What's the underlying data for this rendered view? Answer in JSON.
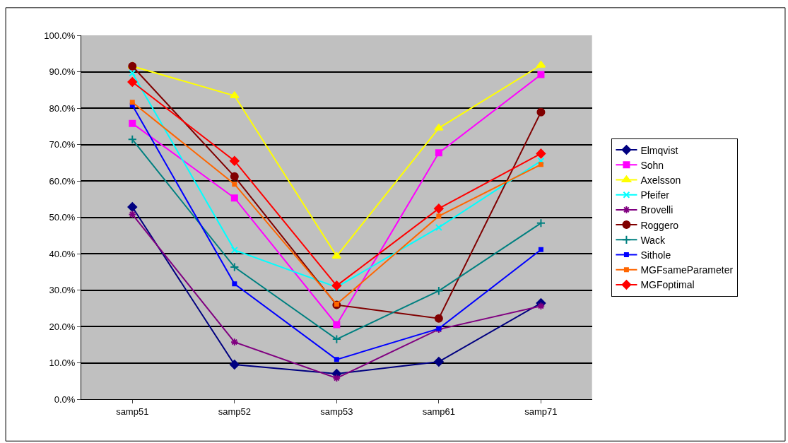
{
  "chart_data": {
    "type": "line",
    "categories": [
      "samp51",
      "samp52",
      "samp53",
      "samp61",
      "samp71"
    ],
    "series": [
      {
        "name": "Elmqvist",
        "color": "#000080",
        "marker": "diamond",
        "values": [
          52.8,
          9.5,
          7.0,
          10.3,
          26.4
        ]
      },
      {
        "name": "Sohn",
        "color": "#ff00ff",
        "marker": "square",
        "values": [
          75.8,
          55.3,
          20.5,
          67.7,
          89.2
        ]
      },
      {
        "name": "Axelsson",
        "color": "#ffff00",
        "marker": "triangle",
        "values": [
          91.5,
          83.4,
          39.3,
          74.5,
          91.8
        ]
      },
      {
        "name": "Pfeifer",
        "color": "#00ffff",
        "marker": "x",
        "values": [
          89.6,
          41.0,
          30.8,
          47.2,
          65.5
        ]
      },
      {
        "name": "Brovelli",
        "color": "#800080",
        "marker": "cross",
        "values": [
          50.8,
          15.7,
          5.8,
          19.2,
          25.6
        ]
      },
      {
        "name": "Roggero",
        "color": "#800000",
        "marker": "circle",
        "values": [
          91.5,
          61.2,
          25.9,
          22.2,
          78.9
        ]
      },
      {
        "name": "Wack",
        "color": "#008080",
        "marker": "plus",
        "values": [
          71.4,
          36.3,
          16.5,
          29.8,
          48.4
        ]
      },
      {
        "name": "Sithole",
        "color": "#0000ff",
        "marker": "square",
        "values": [
          80.8,
          31.7,
          10.9,
          19.4,
          41.1
        ]
      },
      {
        "name": "MGFsameParameter",
        "color": "#ff6600",
        "marker": "square",
        "values": [
          81.6,
          59.1,
          26.1,
          50.3,
          64.5
        ]
      },
      {
        "name": "MGFoptimal",
        "color": "#ff0000",
        "marker": "diamond",
        "values": [
          87.2,
          65.5,
          31.2,
          52.4,
          67.5
        ]
      }
    ],
    "ylim": [
      0,
      100
    ],
    "yticks": [
      {
        "value": 0,
        "label": "0.0%"
      },
      {
        "value": 10,
        "label": "10.0%"
      },
      {
        "value": 20,
        "label": "20.0%"
      },
      {
        "value": 30,
        "label": "30.0%"
      },
      {
        "value": 40,
        "label": "40.0%"
      },
      {
        "value": 50,
        "label": "50.0%"
      },
      {
        "value": 60,
        "label": "60.0%"
      },
      {
        "value": 70,
        "label": "70.0%"
      },
      {
        "value": 80,
        "label": "80.0%"
      },
      {
        "value": 90,
        "label": "90.0%"
      },
      {
        "value": 100,
        "label": "100.0%"
      }
    ],
    "grid": "y",
    "legend": "right",
    "line_style": "solid"
  }
}
